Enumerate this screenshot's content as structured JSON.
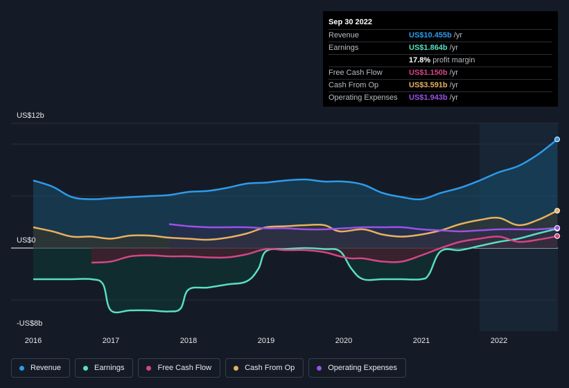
{
  "chart_data": {
    "type": "line",
    "y_axis": {
      "top_label": "US$12b",
      "zero_label": "US$0",
      "bottom_label": "-US$8b",
      "ylim": [
        -8,
        12
      ]
    },
    "x_ticks": [
      "2016",
      "2017",
      "2018",
      "2019",
      "2020",
      "2021",
      "2022"
    ],
    "xlim": [
      2015.7,
      2022.75
    ],
    "highlight_start": 2021.75,
    "series": [
      {
        "name": "Revenue",
        "color": "#2e9bea",
        "fill": "#1a4e6e",
        "x": [
          2016.0,
          2016.25,
          2016.5,
          2016.75,
          2017.0,
          2017.25,
          2017.5,
          2017.75,
          2018.0,
          2018.25,
          2018.5,
          2018.75,
          2019.0,
          2019.25,
          2019.5,
          2019.75,
          2020.0,
          2020.25,
          2020.5,
          2020.75,
          2021.0,
          2021.25,
          2021.5,
          2021.75,
          2022.0,
          2022.25,
          2022.5,
          2022.75
        ],
        "values": [
          6.5,
          5.9,
          4.9,
          4.7,
          4.8,
          4.9,
          5.0,
          5.1,
          5.4,
          5.5,
          5.8,
          6.2,
          6.3,
          6.5,
          6.6,
          6.4,
          6.4,
          6.1,
          5.3,
          4.9,
          4.7,
          5.3,
          5.8,
          6.5,
          7.3,
          7.9,
          9.0,
          10.455
        ]
      },
      {
        "name": "Earnings",
        "color": "#58dfc4",
        "fill": "#0e3a36",
        "x": [
          2016.0,
          2016.25,
          2016.5,
          2016.75,
          2016.9,
          2017.0,
          2017.25,
          2017.5,
          2017.75,
          2017.9,
          2018.0,
          2018.25,
          2018.5,
          2018.75,
          2018.9,
          2019.0,
          2019.25,
          2019.5,
          2019.75,
          2019.95,
          2020.1,
          2020.25,
          2020.5,
          2020.75,
          2021.0,
          2021.1,
          2021.25,
          2021.5,
          2021.75,
          2022.0,
          2022.25,
          2022.5,
          2022.75
        ],
        "values": [
          -3.0,
          -3.0,
          -3.0,
          -3.0,
          -3.5,
          -6.0,
          -6.0,
          -6.0,
          -6.1,
          -5.8,
          -4.0,
          -3.8,
          -3.5,
          -3.2,
          -2.0,
          -0.3,
          -0.1,
          0.0,
          -0.1,
          -0.3,
          -2.0,
          -3.0,
          -3.0,
          -3.0,
          -3.0,
          -2.5,
          -0.3,
          -0.2,
          0.2,
          0.6,
          0.9,
          1.4,
          1.864
        ]
      },
      {
        "name": "Free Cash Flow",
        "color": "#d54684",
        "fill": "#5a1c2c",
        "x": [
          2016.75,
          2017.0,
          2017.25,
          2017.5,
          2017.75,
          2018.0,
          2018.25,
          2018.5,
          2018.75,
          2019.0,
          2019.25,
          2019.5,
          2019.75,
          2019.95,
          2020.1,
          2020.25,
          2020.5,
          2020.75,
          2021.0,
          2021.25,
          2021.5,
          2021.75,
          2022.0,
          2022.25,
          2022.5,
          2022.75
        ],
        "values": [
          -1.4,
          -1.3,
          -0.8,
          -0.7,
          -0.8,
          -0.8,
          -0.9,
          -0.9,
          -0.6,
          -0.1,
          -0.2,
          -0.2,
          -0.4,
          -0.8,
          -1.0,
          -1.0,
          -1.3,
          -1.3,
          -0.7,
          0.0,
          0.6,
          0.9,
          1.1,
          0.6,
          0.8,
          1.15
        ]
      },
      {
        "name": "Cash From Op",
        "color": "#e8b160",
        "fill": "#3c3424",
        "x": [
          2016.0,
          2016.25,
          2016.5,
          2016.75,
          2017.0,
          2017.25,
          2017.5,
          2017.75,
          2018.0,
          2018.25,
          2018.5,
          2018.75,
          2019.0,
          2019.25,
          2019.5,
          2019.75,
          2019.95,
          2020.25,
          2020.5,
          2020.75,
          2021.0,
          2021.25,
          2021.5,
          2021.75,
          2022.0,
          2022.25,
          2022.5,
          2022.75
        ],
        "values": [
          2.0,
          1.6,
          1.1,
          1.1,
          0.9,
          1.2,
          1.2,
          1.0,
          0.9,
          0.8,
          1.0,
          1.4,
          2.0,
          2.1,
          2.2,
          2.2,
          1.6,
          1.8,
          1.3,
          1.1,
          1.3,
          1.7,
          2.3,
          2.7,
          2.9,
          2.2,
          2.7,
          3.591
        ]
      },
      {
        "name": "Operating Expenses",
        "color": "#9a52e8",
        "fill": "#2f2a4d",
        "x": [
          2017.75,
          2018.0,
          2018.25,
          2018.5,
          2018.75,
          2019.0,
          2019.25,
          2019.5,
          2019.75,
          2020.0,
          2020.25,
          2020.5,
          2020.75,
          2021.0,
          2021.25,
          2021.5,
          2021.75,
          2022.0,
          2022.25,
          2022.5,
          2022.75
        ],
        "values": [
          2.3,
          2.1,
          2.0,
          2.0,
          2.0,
          1.9,
          1.9,
          1.8,
          1.8,
          1.9,
          2.0,
          2.0,
          2.0,
          1.8,
          1.7,
          1.6,
          1.7,
          1.8,
          1.8,
          1.8,
          1.943
        ]
      }
    ]
  },
  "tooltip": {
    "date": "Sep 30 2022",
    "rows": [
      {
        "label": "Revenue",
        "value": "US$10.455b",
        "unit": "/yr",
        "color": "#2e9bea"
      },
      {
        "label": "Earnings",
        "value": "US$1.864b",
        "unit": "/yr",
        "color": "#58dfc4"
      },
      {
        "label": "",
        "value": "17.8%",
        "unit": "profit margin",
        "color": "#ffffff"
      },
      {
        "label": "Free Cash Flow",
        "value": "US$1.150b",
        "unit": "/yr",
        "color": "#d54684"
      },
      {
        "label": "Cash From Op",
        "value": "US$3.591b",
        "unit": "/yr",
        "color": "#e8b160"
      },
      {
        "label": "Operating Expenses",
        "value": "US$1.943b",
        "unit": "/yr",
        "color": "#9a52e8"
      }
    ]
  },
  "legend": [
    {
      "label": "Revenue",
      "color": "#2e9bea"
    },
    {
      "label": "Earnings",
      "color": "#58dfc4"
    },
    {
      "label": "Free Cash Flow",
      "color": "#d54684"
    },
    {
      "label": "Cash From Op",
      "color": "#e8b160"
    },
    {
      "label": "Operating Expenses",
      "color": "#9a52e8"
    }
  ]
}
